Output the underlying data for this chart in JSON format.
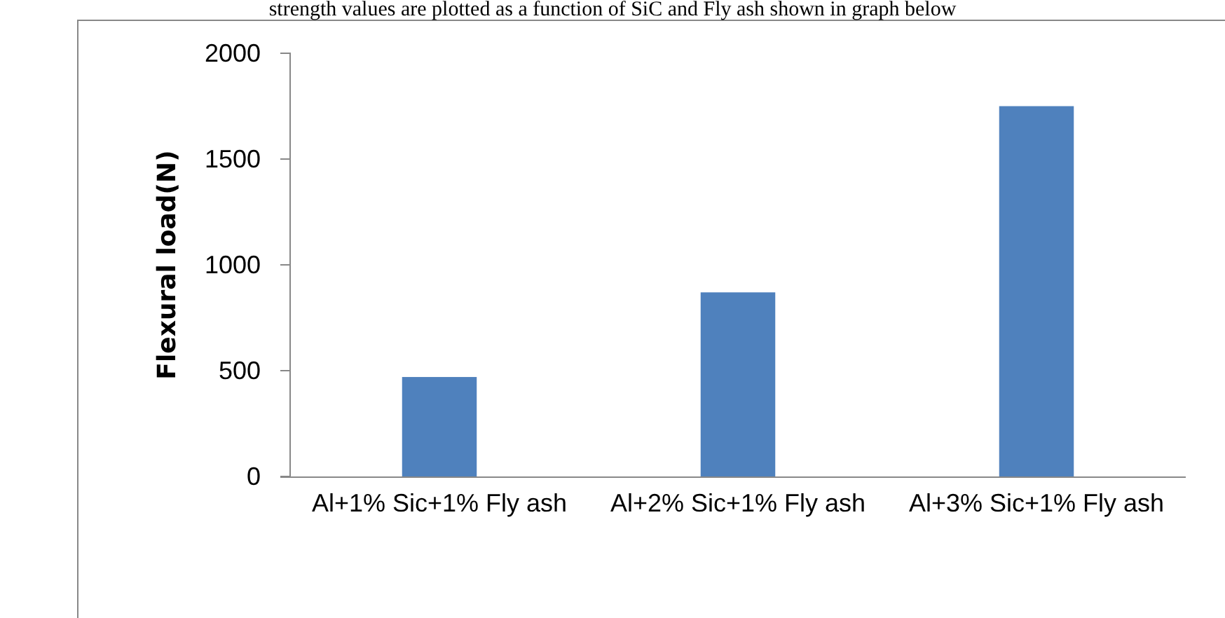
{
  "chart_data": {
    "type": "bar",
    "ylabel": "Flexural load(N)",
    "categories": [
      "Al+1% Sic+1% Fly ash",
      "Al+2% Sic+1% Fly ash",
      "Al+3% Sic+1% Fly ash"
    ],
    "values": [
      470,
      870,
      1750
    ],
    "color": "#4f81bd",
    "ylim": [
      0,
      2000
    ],
    "yticks": [
      0,
      500,
      1000,
      1500,
      2000
    ],
    "grid": false,
    "annotations": [
      "strength values are plotted as a function of SiC and Fly ash shown in graph below"
    ]
  }
}
